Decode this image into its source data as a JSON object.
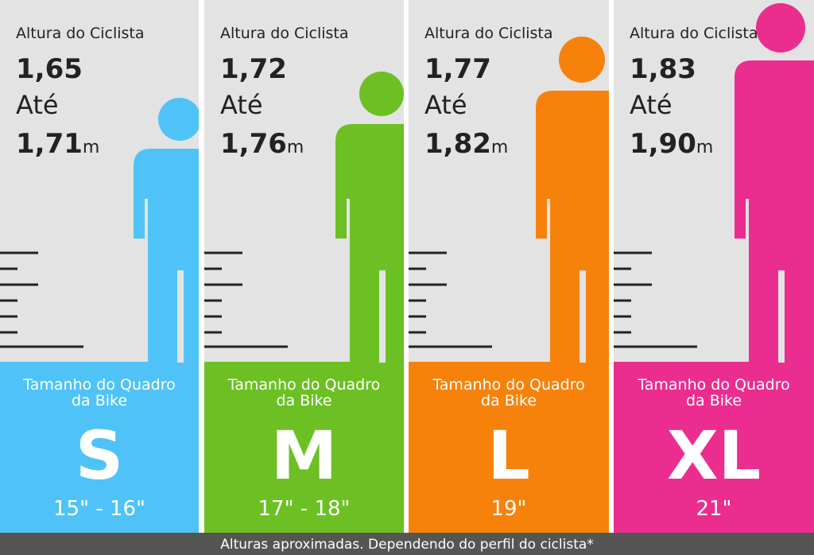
{
  "panels": [
    {
      "label": "Altura do Ciclista",
      "from": "1,65",
      "until": "Até",
      "to": "1,71",
      "unit": "m",
      "frame_label": [
        "Tamanho do Quadro",
        "da Bike"
      ],
      "size": "S",
      "inches": "15\" - 16\"",
      "color": "#4fc3f7"
    },
    {
      "label": "Altura do Ciclista",
      "from": "1,72",
      "until": "Até",
      "to": "1,76",
      "unit": "m",
      "frame_label": [
        "Tamanho do Quadro",
        "da Bike"
      ],
      "size": "M",
      "inches": "17\" - 18\"",
      "color": "#6cc024"
    },
    {
      "label": "Altura do Ciclista",
      "from": "1,77",
      "until": "Até",
      "to": "1,82",
      "unit": "m",
      "frame_label": [
        "Tamanho do Quadro",
        "da Bike"
      ],
      "size": "L",
      "inches": "19\"",
      "color": "#f7820b"
    },
    {
      "label": "Altura do Ciclista",
      "from": "1,83",
      "until": "Até",
      "to": "1,90",
      "unit": "m",
      "frame_label": [
        "Tamanho do Quadro",
        "da Bike"
      ],
      "size": "XL",
      "inches": "21\"",
      "color": "#eb2d8f"
    }
  ],
  "footer": "Alturas aproximadas. Dependendo do perfil do ciclista*"
}
